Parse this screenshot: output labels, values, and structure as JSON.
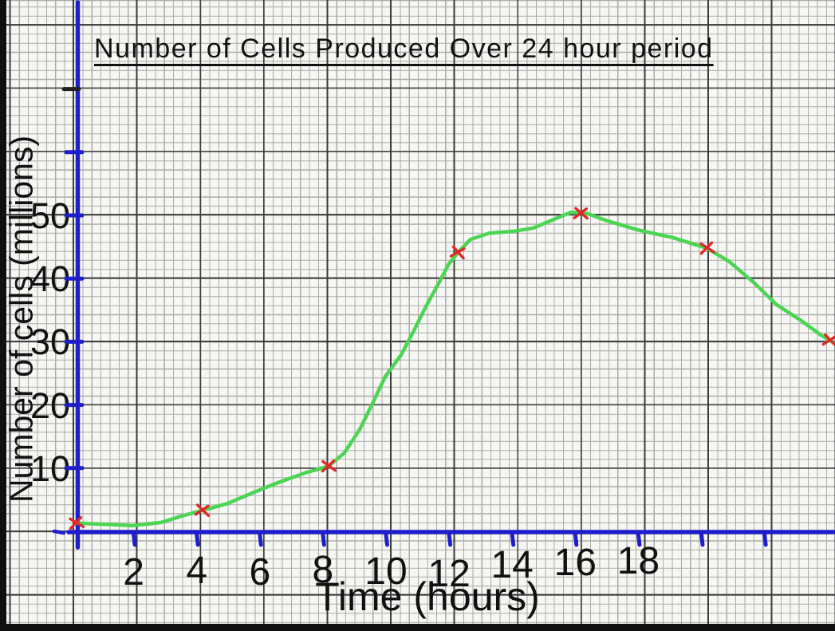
{
  "chart_data": {
    "type": "line",
    "title": "Number of Cells Produced Over 24 hour period",
    "xlabel": "Time (hours)",
    "ylabel": "Number of cells (millions)",
    "xlim": [
      0,
      24
    ],
    "ylim": [
      0,
      84
    ],
    "grid": "graph-paper",
    "axis_color": "#1e1ecb",
    "x_tick_labels": [
      "2",
      "4",
      "6",
      "8",
      "10",
      "12",
      "14",
      "16",
      "18"
    ],
    "x_tick_label_values": [
      2,
      4,
      6,
      8,
      10,
      12,
      14,
      16,
      18
    ],
    "x_ticks_marked": [
      2,
      4,
      6,
      8,
      10,
      12,
      14,
      16,
      18,
      20,
      22
    ],
    "y_tick_labels": [
      "10",
      "20",
      "30",
      "40",
      "50"
    ],
    "y_tick_label_values": [
      10,
      20,
      30,
      40,
      50
    ],
    "y_ticks_marked_blue": [
      10,
      20,
      30,
      40,
      50,
      60
    ],
    "y_ticks_marked_black": [
      70
    ],
    "series": [
      {
        "name": "cells-produced",
        "color": "#4cd553",
        "marker": "x",
        "marker_color": "#e02a2a",
        "data_points": [
          [
            0,
            1
          ],
          [
            4,
            4
          ],
          [
            8,
            10
          ],
          [
            12,
            45
          ],
          [
            16,
            50
          ],
          [
            20,
            45
          ],
          [
            24,
            30
          ]
        ],
        "marker_positions": [
          [
            0,
            1.3
          ],
          [
            4,
            3.3
          ],
          [
            8,
            10.3
          ],
          [
            12.1,
            44.1
          ],
          [
            16,
            50.3
          ],
          [
            20,
            44.8
          ],
          [
            23.9,
            30.2
          ]
        ],
        "trace": [
          [
            0,
            1.3
          ],
          [
            0.9,
            1.1
          ],
          [
            1.8,
            0.9
          ],
          [
            2.7,
            1.4
          ],
          [
            3.4,
            2.5
          ],
          [
            4,
            3.3
          ],
          [
            4.8,
            4.4
          ],
          [
            5.6,
            6.1
          ],
          [
            6.4,
            7.7
          ],
          [
            7.3,
            9.3
          ],
          [
            8,
            10.3
          ],
          [
            8.5,
            12.4
          ],
          [
            9,
            16.2
          ],
          [
            9.4,
            20.3
          ],
          [
            9.8,
            24.5
          ],
          [
            10.3,
            27.9
          ],
          [
            10.7,
            31.7
          ],
          [
            11.1,
            35.7
          ],
          [
            11.5,
            39.3
          ],
          [
            11.8,
            42.2
          ],
          [
            12.1,
            44.1
          ],
          [
            12.5,
            46.2
          ],
          [
            13.1,
            47.2
          ],
          [
            13.9,
            47.5
          ],
          [
            14.5,
            48
          ],
          [
            15.2,
            49.5
          ],
          [
            15.7,
            50.5
          ],
          [
            16.2,
            50.3
          ],
          [
            16.8,
            49.2
          ],
          [
            17.8,
            47.7
          ],
          [
            18.9,
            46.5
          ],
          [
            20,
            44.8
          ],
          [
            20.7,
            42.7
          ],
          [
            21.5,
            39.3
          ],
          [
            22.2,
            35.9
          ],
          [
            23,
            33.3
          ],
          [
            23.6,
            31.1
          ],
          [
            24,
            29.9
          ]
        ]
      }
    ]
  }
}
